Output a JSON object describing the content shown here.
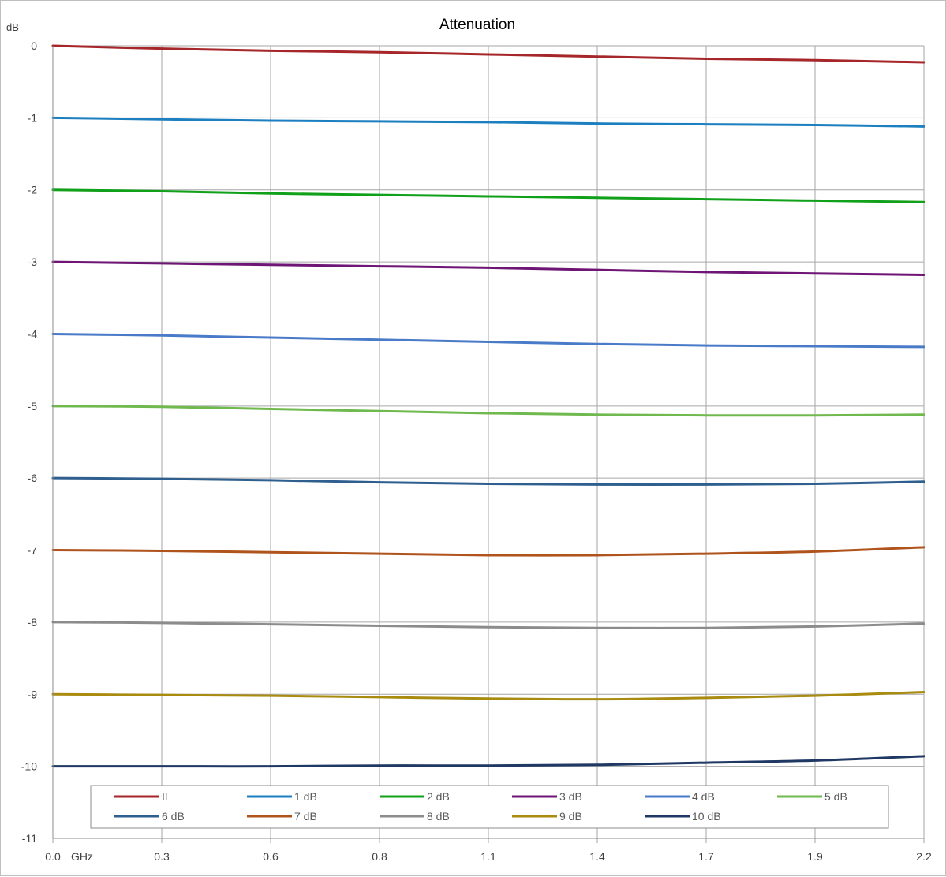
{
  "chart_data": {
    "type": "line",
    "title": "Attenuation",
    "ylabel": "dB",
    "xunit": "GHz",
    "ylim": [
      -11,
      0
    ],
    "xlim": [
      0.0,
      2.2
    ],
    "yticks": [
      "0",
      "-1",
      "-2",
      "-3",
      "-4",
      "-5",
      "-6",
      "-7",
      "-8",
      "-9",
      "-10",
      "-11"
    ],
    "xticks": [
      "0.0",
      "0.3",
      "0.6",
      "0.8",
      "1.1",
      "1.4",
      "1.7",
      "1.9",
      "2.2"
    ],
    "grid": true,
    "legend": "bottom-inside",
    "x": [
      0.0,
      0.275,
      0.55,
      0.825,
      1.1,
      1.375,
      1.65,
      1.925,
      2.2
    ],
    "series": [
      {
        "name": "IL",
        "color": "#a6262a",
        "values": [
          0.0,
          -0.04,
          -0.07,
          -0.09,
          -0.12,
          -0.15,
          -0.18,
          -0.2,
          -0.23
        ]
      },
      {
        "name": "1 dB",
        "color": "#1c7fc0",
        "values": [
          -1.0,
          -1.02,
          -1.04,
          -1.05,
          -1.06,
          -1.08,
          -1.09,
          -1.1,
          -1.12
        ]
      },
      {
        "name": "2 dB",
        "color": "#11a01a",
        "values": [
          -2.0,
          -2.02,
          -2.05,
          -2.07,
          -2.09,
          -2.11,
          -2.13,
          -2.15,
          -2.17
        ]
      },
      {
        "name": "3 dB",
        "color": "#6e1575",
        "values": [
          -3.0,
          -3.02,
          -3.04,
          -3.06,
          -3.08,
          -3.11,
          -3.14,
          -3.16,
          -3.18
        ]
      },
      {
        "name": "4 dB",
        "color": "#4a7bc8",
        "values": [
          -4.0,
          -4.02,
          -4.05,
          -4.08,
          -4.11,
          -4.14,
          -4.16,
          -4.17,
          -4.18
        ]
      },
      {
        "name": "5 dB",
        "color": "#70b94e",
        "values": [
          -5.0,
          -5.01,
          -5.04,
          -5.07,
          -5.1,
          -5.12,
          -5.13,
          -5.13,
          -5.12
        ]
      },
      {
        "name": "6 dB",
        "color": "#2f5f8e",
        "values": [
          -6.0,
          -6.01,
          -6.03,
          -6.06,
          -6.08,
          -6.09,
          -6.09,
          -6.08,
          -6.05
        ]
      },
      {
        "name": "7 dB",
        "color": "#b0541e",
        "values": [
          -7.0,
          -7.01,
          -7.03,
          -7.05,
          -7.07,
          -7.07,
          -7.05,
          -7.02,
          -6.96
        ]
      },
      {
        "name": "8 dB",
        "color": "#8c8c8c",
        "values": [
          -8.0,
          -8.01,
          -8.03,
          -8.05,
          -8.07,
          -8.08,
          -8.08,
          -8.06,
          -8.02
        ]
      },
      {
        "name": "9 dB",
        "color": "#a98b10",
        "values": [
          -9.0,
          -9.01,
          -9.02,
          -9.04,
          -9.06,
          -9.07,
          -9.05,
          -9.02,
          -8.97
        ]
      },
      {
        "name": "10 dB",
        "color": "#1f3864",
        "values": [
          -10.0,
          -10.0,
          -10.0,
          -9.99,
          -9.99,
          -9.98,
          -9.95,
          -9.92,
          -9.86
        ]
      }
    ]
  }
}
